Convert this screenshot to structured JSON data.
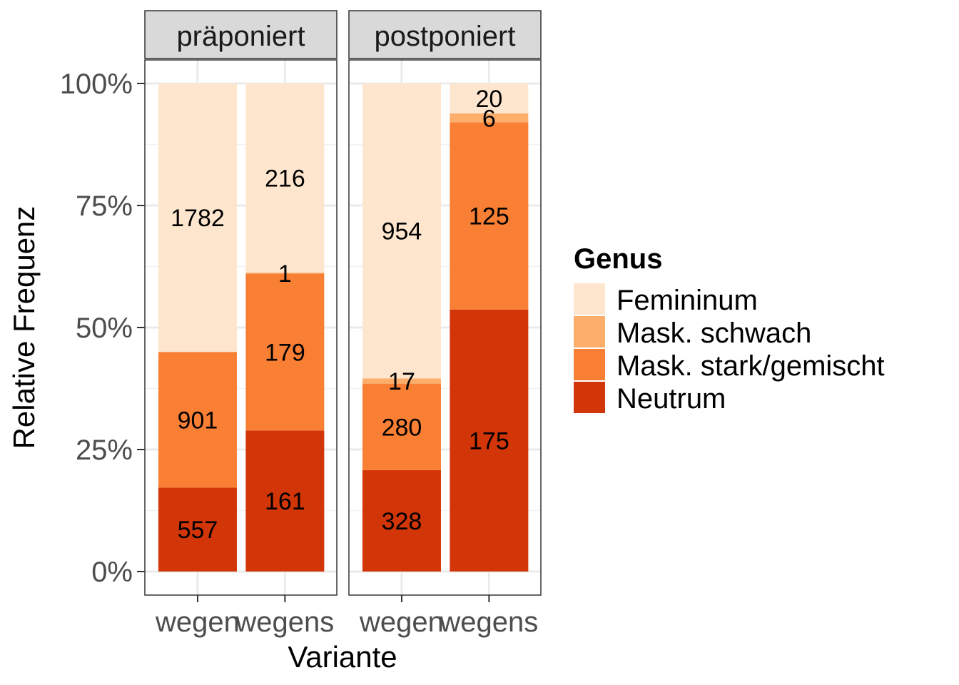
{
  "chart_data": {
    "type": "bar",
    "stacked": true,
    "position": "fill",
    "xlabel": "Variante",
    "ylabel": "Relative Frequenz",
    "ylim": [
      0,
      1
    ],
    "y_ticks": [
      "0%",
      "25%",
      "50%",
      "75%",
      "100%"
    ],
    "categories": [
      "wegen",
      "wegens"
    ],
    "legend": {
      "title": "Genus",
      "placement": "right",
      "entries": [
        "Femininum",
        "Mask. schwach",
        "Mask. stark/gemischt",
        "Neutrum"
      ]
    },
    "colors": {
      "Femininum": "#fee6ce",
      "Mask. schwach": "#fdae6b",
      "Mask. stark/gemischt": "#f87f34",
      "Neutrum": "#d23508"
    },
    "facets": [
      {
        "label": "präponiert",
        "series": [
          {
            "name": "Femininum",
            "values": [
              1782,
              216
            ]
          },
          {
            "name": "Mask. schwach",
            "values": [
              0,
              1
            ]
          },
          {
            "name": "Mask. stark/gemischt",
            "values": [
              901,
              179
            ]
          },
          {
            "name": "Neutrum",
            "values": [
              557,
              161
            ]
          }
        ]
      },
      {
        "label": "postponiert",
        "series": [
          {
            "name": "Femininum",
            "values": [
              954,
              20
            ]
          },
          {
            "name": "Mask. schwach",
            "values": [
              17,
              6
            ]
          },
          {
            "name": "Mask. stark/gemischt",
            "values": [
              280,
              125
            ]
          },
          {
            "name": "Neutrum",
            "values": [
              328,
              175
            ]
          }
        ]
      }
    ],
    "grid": true
  }
}
